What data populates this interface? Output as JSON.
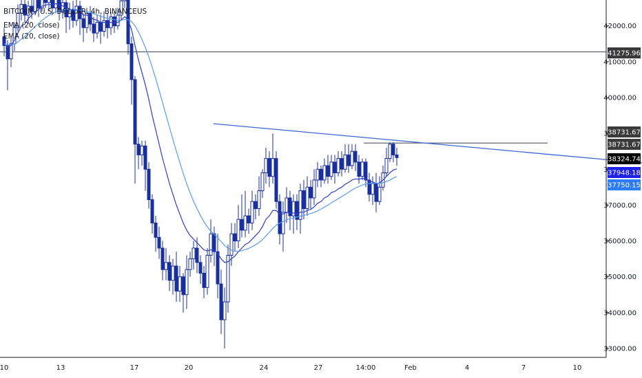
{
  "header": {
    "symbol": "BITCOIN / U.S. DOLLAR, 4h, BINANCEUS",
    "indicator_1": "EMA (20, close)",
    "indicator_2": "EMA (20, close)"
  },
  "colors": {
    "background": "#ffffff",
    "candle": "#1a2f9e",
    "ema_fast": "#2f3fc9",
    "ema_slow": "#5b9bf0",
    "trendline": "#3a64d8",
    "horizontal_line": "#3a3f50",
    "axis_text": "#131722",
    "badge_dark": "#3a3a3a",
    "badge_black": "#000000",
    "badge_blue": "#1e22e8",
    "badge_lightblue": "#2b7cf5"
  },
  "chart_data": {
    "type": "candlestick",
    "title": "BITCOIN / U.S. DOLLAR, 4h, BINANCEUS",
    "ylim": [
      32800,
      43000
    ],
    "y_ticks": [
      33000,
      34000,
      35000,
      36000,
      37000,
      38000,
      39000,
      40000,
      41000,
      42000
    ],
    "y_tick_labels": [
      "33000.00",
      "34000.00",
      "35000.00",
      "36000.00",
      "37000.00",
      "38000.00",
      "39000.00",
      "40000.00",
      "41000.00",
      "42000.00"
    ],
    "x_tick_labels": [
      "10",
      "13",
      "17",
      "20",
      "24",
      "27",
      "14:00",
      "Feb",
      "4",
      "7",
      "10"
    ],
    "price_badges": [
      {
        "label": "41275.96",
        "value": 41275.96,
        "style": "dark"
      },
      {
        "label": "38731.67",
        "value": 38731.67,
        "style": "dark"
      },
      {
        "label": "38731.67",
        "value": 38731.67,
        "style": "dark"
      },
      {
        "label": "38324.74",
        "value": 38324.74,
        "style": "black"
      },
      {
        "label": "37948.18",
        "value": 37948.18,
        "style": "blue"
      },
      {
        "label": "37750.15",
        "value": 37750.15,
        "style": "lightblue"
      }
    ],
    "horizontal_levels": [
      41275.96,
      38731.67
    ],
    "trendline": {
      "from": [
        0.0,
        39300
      ],
      "to": [
        1.0,
        38300
      ]
    },
    "candles": [
      [
        41700,
        41450,
        41950,
        41150
      ],
      [
        41450,
        41080,
        41600,
        40200
      ],
      [
        41080,
        41500,
        41700,
        40850
      ],
      [
        41500,
        41950,
        42100,
        41300
      ],
      [
        41950,
        42350,
        42600,
        41850
      ],
      [
        42350,
        42600,
        42800,
        42150
      ],
      [
        42600,
        42300,
        42850,
        42100
      ],
      [
        42300,
        42550,
        42700,
        42050
      ],
      [
        42550,
        42400,
        42900,
        42200
      ],
      [
        42400,
        42800,
        43000,
        42300
      ],
      [
        42800,
        42500,
        42950,
        42250
      ],
      [
        42500,
        42900,
        43000,
        42400
      ],
      [
        42900,
        42650,
        43000,
        42500
      ],
      [
        42650,
        42750,
        42950,
        42400
      ],
      [
        42750,
        42500,
        42950,
        42300
      ],
      [
        42500,
        42800,
        43000,
        42350
      ],
      [
        42800,
        42400,
        42950,
        42150
      ],
      [
        42400,
        42650,
        42850,
        42200
      ],
      [
        42650,
        42250,
        42800,
        41800
      ],
      [
        42250,
        42450,
        42650,
        41900
      ],
      [
        42450,
        42150,
        42700,
        41950
      ],
      [
        42150,
        42550,
        42750,
        42000
      ],
      [
        42550,
        42200,
        42700,
        41750
      ],
      [
        42200,
        41950,
        42350,
        41550
      ],
      [
        41950,
        42350,
        42500,
        41800
      ],
      [
        42350,
        42050,
        42550,
        41850
      ],
      [
        42050,
        41800,
        42250,
        41550
      ],
      [
        41800,
        42100,
        42300,
        41650
      ],
      [
        42100,
        41850,
        42300,
        41500
      ],
      [
        41850,
        42150,
        42400,
        41700
      ],
      [
        42150,
        41950,
        42350,
        41650
      ],
      [
        41950,
        42250,
        42400,
        41750
      ],
      [
        42250,
        42000,
        42400,
        41800
      ],
      [
        42000,
        42300,
        42500,
        41900
      ],
      [
        42300,
        42700,
        42900,
        42150
      ],
      [
        42700,
        42900,
        43000,
        42500
      ],
      [
        42900,
        41500,
        43000,
        41200
      ],
      [
        41500,
        40500,
        41700,
        39800
      ],
      [
        40500,
        38700,
        40600,
        37600
      ],
      [
        38700,
        38400,
        38900,
        38000
      ],
      [
        38400,
        38650,
        38800,
        38100
      ],
      [
        38650,
        38000,
        38800,
        37400
      ],
      [
        38000,
        37150,
        38200,
        36900
      ],
      [
        37150,
        36500,
        37300,
        36200
      ],
      [
        36500,
        36100,
        36700,
        35700
      ],
      [
        36100,
        35800,
        36400,
        35500
      ],
      [
        35800,
        35200,
        36000,
        34900
      ],
      [
        35200,
        35400,
        35800,
        34900
      ],
      [
        35400,
        34900,
        35600,
        34600
      ],
      [
        34900,
        35300,
        35500,
        34500
      ],
      [
        35300,
        34600,
        35700,
        34300
      ],
      [
        34600,
        35000,
        35300,
        34300
      ],
      [
        35000,
        34500,
        35100,
        34000
      ],
      [
        34500,
        35200,
        35600,
        34100
      ],
      [
        35200,
        35500,
        35700,
        35000
      ],
      [
        35500,
        35800,
        36000,
        35200
      ],
      [
        35800,
        35400,
        36100,
        35100
      ],
      [
        35400,
        35100,
        35600,
        34800
      ],
      [
        35100,
        34700,
        35300,
        34400
      ],
      [
        34700,
        35600,
        35800,
        34500
      ],
      [
        35600,
        36200,
        36600,
        35400
      ],
      [
        36200,
        35700,
        36400,
        35300
      ],
      [
        35700,
        34800,
        36200,
        34400
      ],
      [
        34800,
        33800,
        35200,
        33400
      ],
      [
        33800,
        34300,
        34700,
        33000
      ],
      [
        34300,
        35600,
        35900,
        34000
      ],
      [
        35600,
        36200,
        36500,
        35300
      ],
      [
        36200,
        36000,
        36500,
        35700
      ],
      [
        36000,
        36600,
        37000,
        35800
      ],
      [
        36600,
        36300,
        37300,
        36100
      ],
      [
        36300,
        36700,
        37400,
        36100
      ],
      [
        36700,
        36500,
        36900,
        36200
      ],
      [
        36500,
        37100,
        37400,
        36300
      ],
      [
        37100,
        36900,
        37300,
        36600
      ],
      [
        36900,
        37400,
        37800,
        36700
      ],
      [
        37400,
        37900,
        38000,
        37200
      ],
      [
        37900,
        38300,
        38600,
        37600
      ],
      [
        38300,
        37800,
        38500,
        37500
      ],
      [
        37800,
        38300,
        39000,
        37600
      ],
      [
        38300,
        37100,
        38500,
        36900
      ],
      [
        37100,
        36200,
        37300,
        35900
      ],
      [
        36200,
        36800,
        37100,
        35700
      ],
      [
        36800,
        37200,
        37500,
        36500
      ],
      [
        37200,
        36700,
        37400,
        36300
      ],
      [
        36700,
        37100,
        37300,
        36200
      ],
      [
        37100,
        36600,
        37300,
        36300
      ],
      [
        36600,
        37400,
        37600,
        36200
      ],
      [
        37400,
        36900,
        37700,
        36600
      ],
      [
        36900,
        37500,
        37800,
        36700
      ],
      [
        37500,
        37200,
        37700,
        36900
      ],
      [
        37200,
        37700,
        38000,
        37000
      ],
      [
        37700,
        38000,
        38200,
        37500
      ],
      [
        38000,
        37700,
        38100,
        37500
      ],
      [
        37700,
        38100,
        38300,
        37600
      ],
      [
        38100,
        37800,
        38400,
        37600
      ],
      [
        37800,
        38200,
        38400,
        37700
      ],
      [
        38200,
        37900,
        38400,
        37600
      ],
      [
        37900,
        38300,
        38500,
        37800
      ],
      [
        38300,
        38000,
        38500,
        37800
      ],
      [
        38000,
        38400,
        38700,
        37900
      ],
      [
        38400,
        38100,
        38700,
        37900
      ],
      [
        38100,
        38500,
        38700,
        38000
      ],
      [
        38500,
        38200,
        38700,
        37950
      ],
      [
        38200,
        37800,
        38400,
        37600
      ],
      [
        37800,
        38200,
        38300,
        37700
      ],
      [
        38200,
        37700,
        38300,
        37500
      ],
      [
        37700,
        37300,
        37900,
        37100
      ],
      [
        37300,
        37600,
        37800,
        37000
      ],
      [
        37600,
        37100,
        37900,
        36800
      ],
      [
        37100,
        37500,
        37800,
        37000
      ],
      [
        37500,
        37900,
        38100,
        37400
      ],
      [
        37900,
        38300,
        38600,
        37800
      ],
      [
        38300,
        38700,
        38750,
        38200
      ],
      [
        38700,
        38400,
        38750,
        38200
      ],
      [
        38400,
        38324.74,
        38600,
        38100
      ]
    ],
    "ema_fast": [
      41500,
      41400,
      41450,
      41600,
      41800,
      42000,
      42050,
      42200,
      42300,
      42400,
      42450,
      42550,
      42580,
      42600,
      42580,
      42620,
      42580,
      42560,
      42500,
      42480,
      42430,
      42440,
      42400,
      42300,
      42300,
      42260,
      42180,
      42160,
      42100,
      42100,
      42080,
      42100,
      42080,
      42100,
      42160,
      42260,
      42150,
      41900,
      41450,
      41050,
      40700,
      40350,
      39950,
      39500,
      39100,
      38700,
      38300,
      37950,
      37600,
      37300,
      37000,
      36750,
      36500,
      36300,
      36150,
      36050,
      35950,
      35850,
      35750,
      35720,
      35750,
      35750,
      35650,
      35500,
      35400,
      35420,
      35500,
      35580,
      35700,
      35800,
      35900,
      35950,
      36050,
      36150,
      36250,
      36400,
      36600,
      36700,
      36850,
      36850,
      36750,
      36750,
      36800,
      36780,
      36780,
      36740,
      36800,
      36800,
      36850,
      36880,
      36950,
      37050,
      37100,
      37200,
      37250,
      37350,
      37380,
      37450,
      37500,
      37580,
      37630,
      37700,
      37730,
      37720,
      37750,
      37720,
      37650,
      37650,
      37600,
      37620,
      37700,
      37800,
      37900,
      37980,
      38010
    ]
  }
}
